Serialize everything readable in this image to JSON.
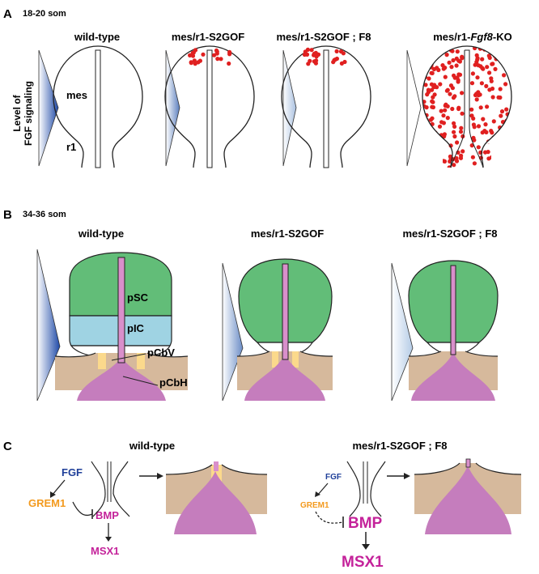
{
  "panelA": {
    "letter": "A",
    "stage": "18-20 som",
    "yaxis_line1": "Level of",
    "yaxis_line2": "FGF signaling",
    "titles": [
      "wild-type",
      "mes/r1-S2GOF",
      "mes/r1-S2GOF ; F8",
      "mes/r1-"
    ],
    "title4_italic": "Fgf8",
    "title4_suffix": "-KO",
    "region_mes": "mes",
    "region_r1": "r1"
  },
  "panelB": {
    "letter": "B",
    "stage": "34-36 som",
    "titles": [
      "wild-type",
      "mes/r1-S2GOF",
      "mes/r1-S2GOF ; F8"
    ],
    "regions": {
      "pSC": "pSC",
      "pIC": "pIC",
      "pCbV": "pCbV",
      "pCbH": "pCbH"
    }
  },
  "panelC": {
    "letter": "C",
    "left": {
      "title": "wild-type",
      "fgf": "FGF",
      "grem1": "GREM1",
      "bmp": "BMP",
      "msx1": "MSX1"
    },
    "right": {
      "title": "mes/r1-S2GOF ; F8",
      "fgf": "FGF",
      "grem1": "GREM1",
      "bmp": "BMP",
      "msx1": "MSX1"
    }
  },
  "colors": {
    "fgf_blue": "#1f3f99",
    "grem1_orange": "#f39a1e",
    "bmp_magenta": "#c4229a",
    "pSC_green": "#62bd78",
    "pIC_blue": "#9fd3e3",
    "pCbH_tan": "#d6b99c",
    "pCbV_yellow": "#fbd98c",
    "midline_pink": "#d98fcb",
    "dots_red": "#e02020"
  }
}
